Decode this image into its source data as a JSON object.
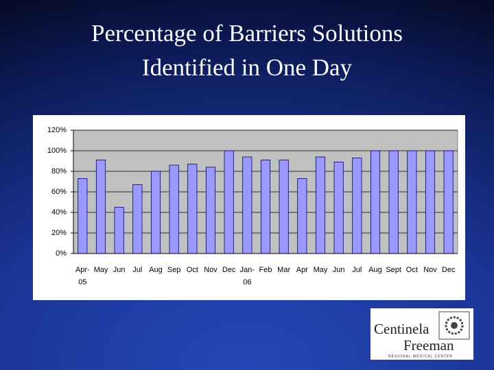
{
  "chart_data": {
    "type": "bar",
    "title": "Percentage of Barriers Solutions Identified in One Day",
    "categories": [
      "Apr-05",
      "May",
      "Jun",
      "Jul",
      "Aug",
      "Sep",
      "Oct",
      "Nov",
      "Dec",
      "Jan-06",
      "Feb",
      "Mar",
      "Apr",
      "May",
      "Jun",
      "Jul",
      "Aug",
      "Sept",
      "Oct",
      "Nov",
      "Dec"
    ],
    "values": [
      73,
      91,
      45,
      67,
      80,
      86,
      87,
      84,
      100,
      94,
      91,
      91,
      73,
      94,
      89,
      93,
      100,
      100,
      100,
      100,
      100
    ],
    "color": "#9999ff",
    "ylim": [
      0,
      120
    ],
    "yticks": [
      {
        "value": 0,
        "label": "0%"
      },
      {
        "value": 20,
        "label": "20%"
      },
      {
        "value": 40,
        "label": "40%"
      },
      {
        "value": 60,
        "label": "60%"
      },
      {
        "value": 80,
        "label": "80%"
      },
      {
        "value": 100,
        "label": "100%"
      },
      {
        "value": 120,
        "label": "120%"
      }
    ],
    "grid": true
  },
  "logo": {
    "lines": [
      "Centinela",
      "Freeman",
      "REGIONAL MEDICAL CENTER"
    ]
  }
}
